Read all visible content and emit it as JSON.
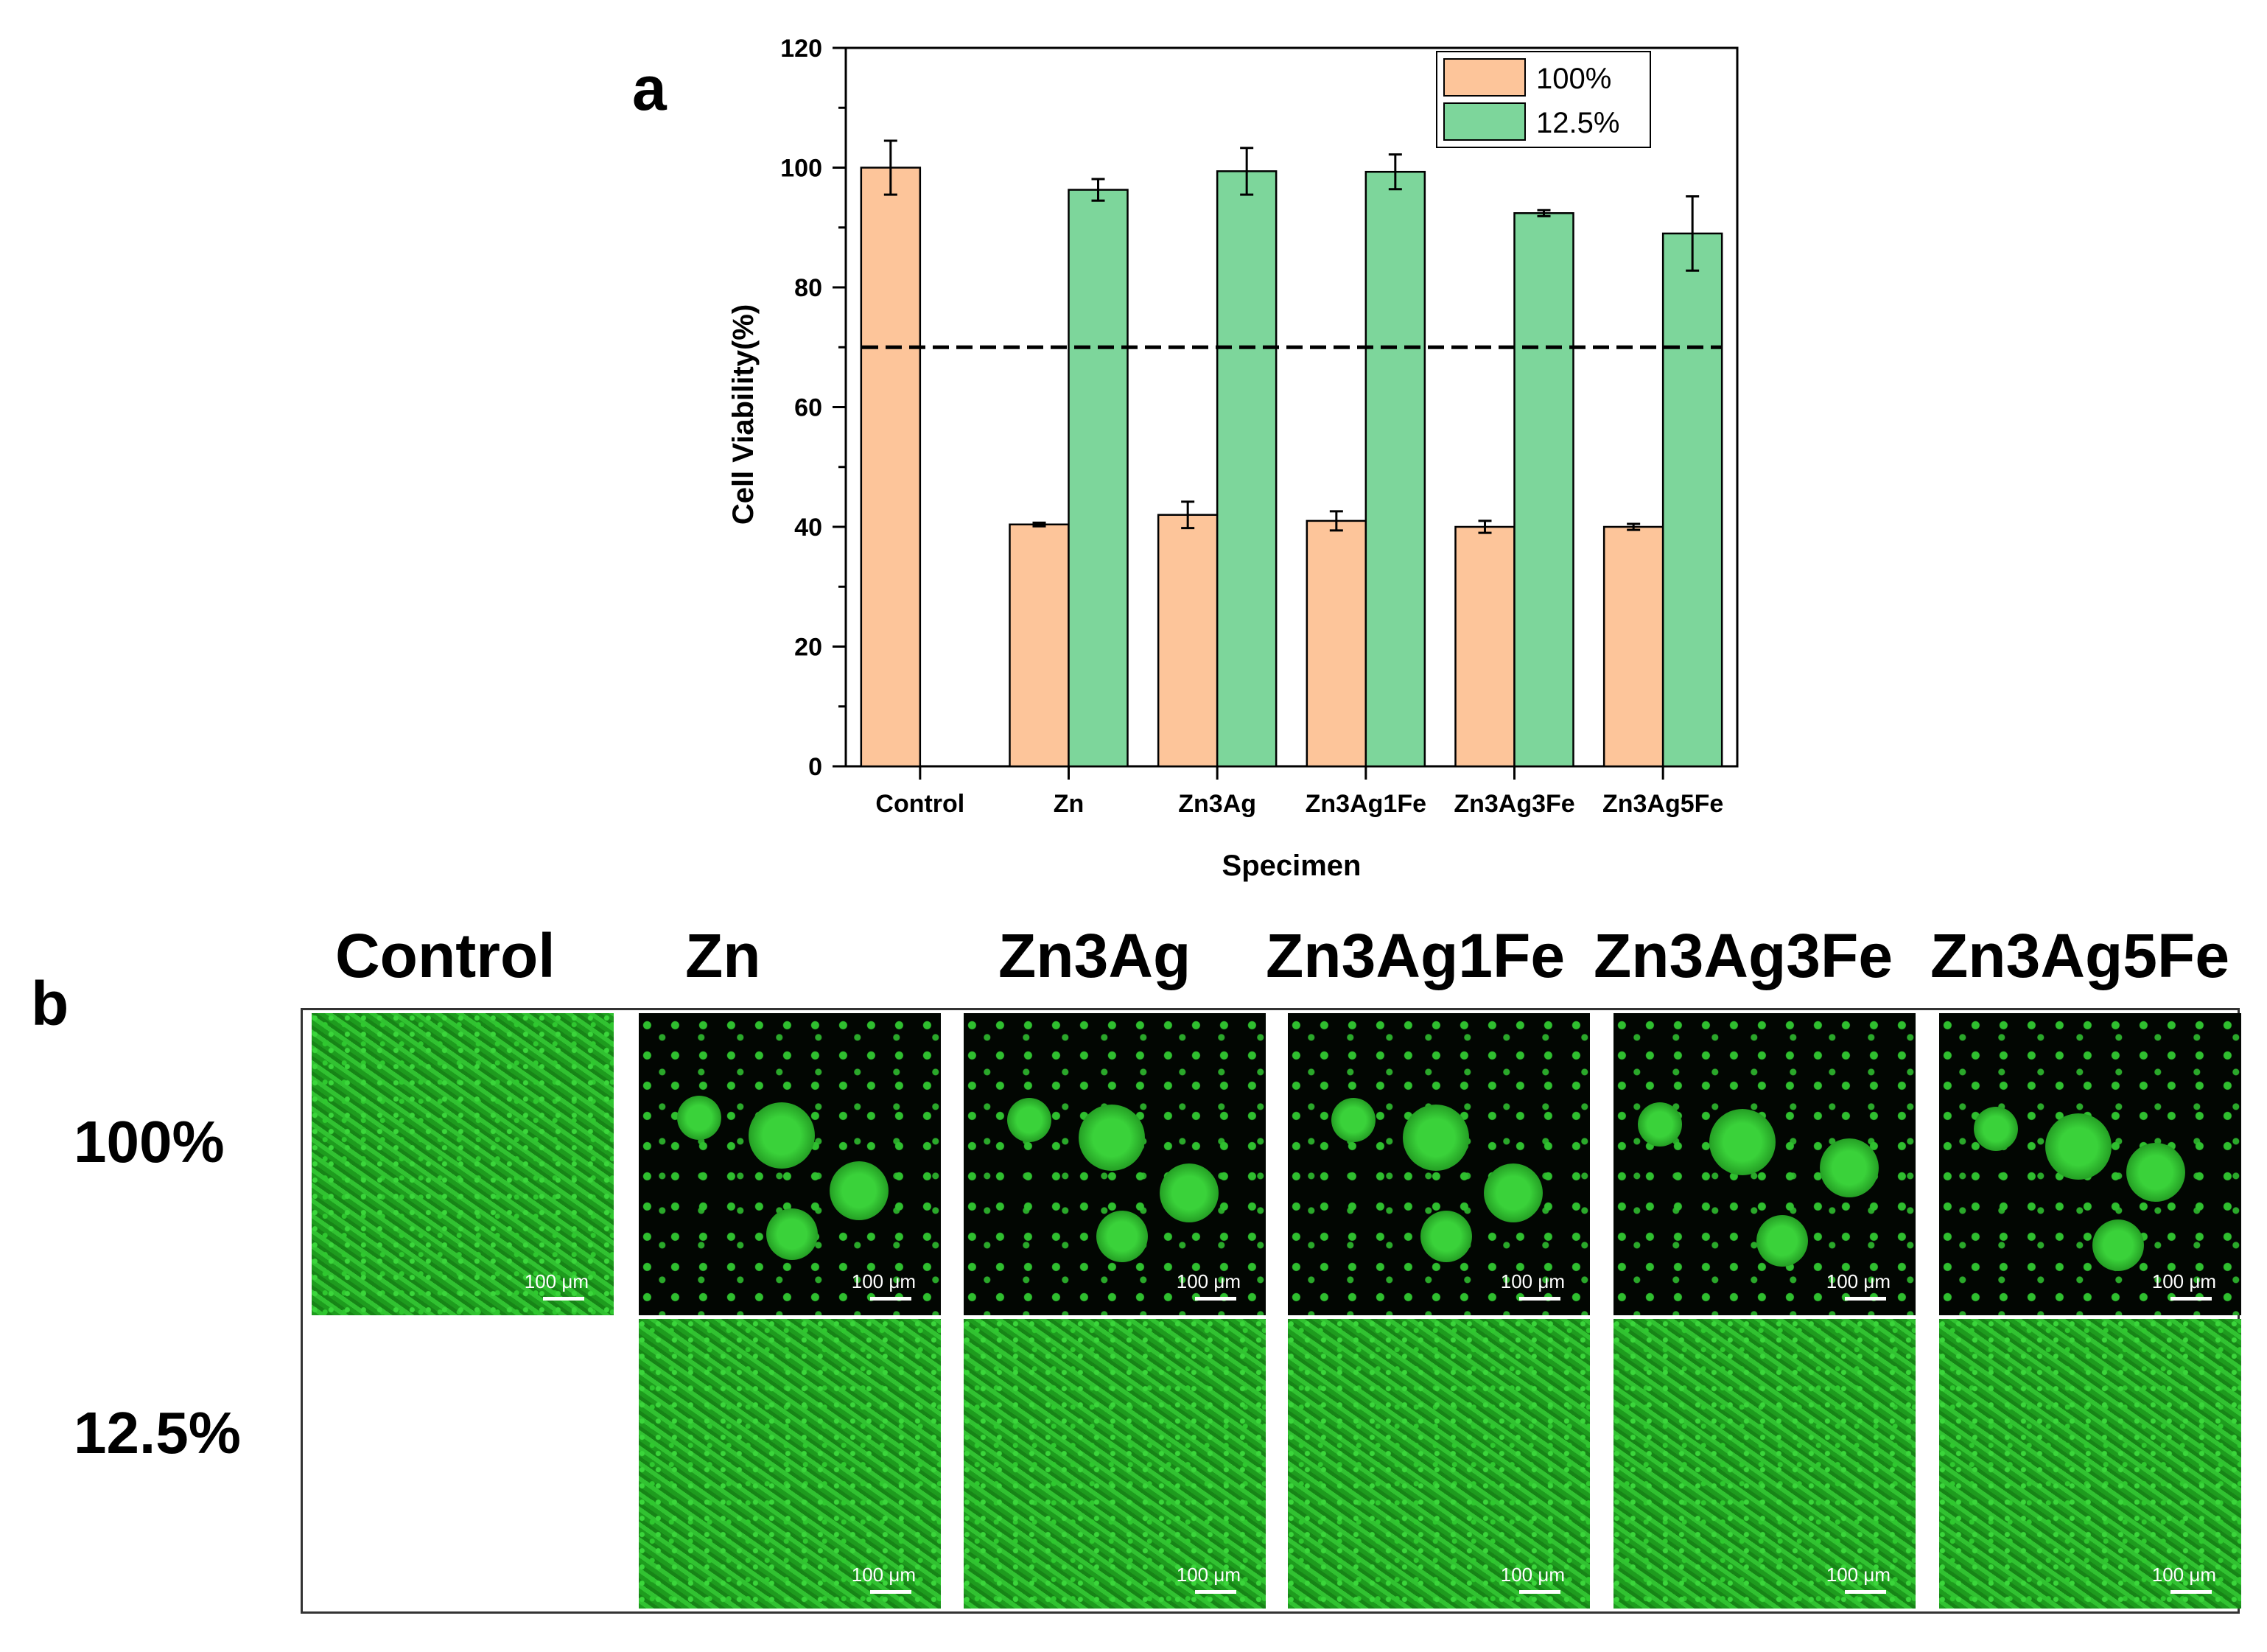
{
  "panel_a_label": "a",
  "panel_b_label": "b",
  "chart_data": {
    "type": "bar",
    "xlabel": "Specimen",
    "ylabel": "Cell Viability(%)",
    "ylim": [
      0,
      120
    ],
    "yticks": [
      0,
      20,
      40,
      60,
      80,
      100,
      120
    ],
    "categories": [
      "Control",
      "Zn",
      "Zn3Ag",
      "Zn3Ag1Fe",
      "Zn3Ag3Fe",
      "Zn3Ag5Fe"
    ],
    "series": [
      {
        "name": "100%",
        "color": "#FDC59A",
        "values": [
          100,
          40.4,
          42,
          41,
          40,
          40
        ],
        "errors": [
          4.5,
          0.3,
          2.2,
          1.6,
          1.0,
          0.5
        ]
      },
      {
        "name": "12.5%",
        "color": "#7DD69B",
        "values": [
          null,
          96.3,
          99.4,
          99.3,
          92.4,
          89
        ],
        "errors": [
          null,
          1.8,
          3.9,
          2.9,
          0.5,
          6.2
        ]
      }
    ],
    "reference_line": 70,
    "legend_position": "top-right"
  },
  "panel_b": {
    "columns": [
      "Control",
      "Zn",
      "Zn3Ag",
      "Zn3Ag1Fe",
      "Zn3Ag3Fe",
      "Zn3Ag5Fe"
    ],
    "rows": [
      "100%",
      "12.5%"
    ],
    "scale_bar": "100 μm"
  }
}
